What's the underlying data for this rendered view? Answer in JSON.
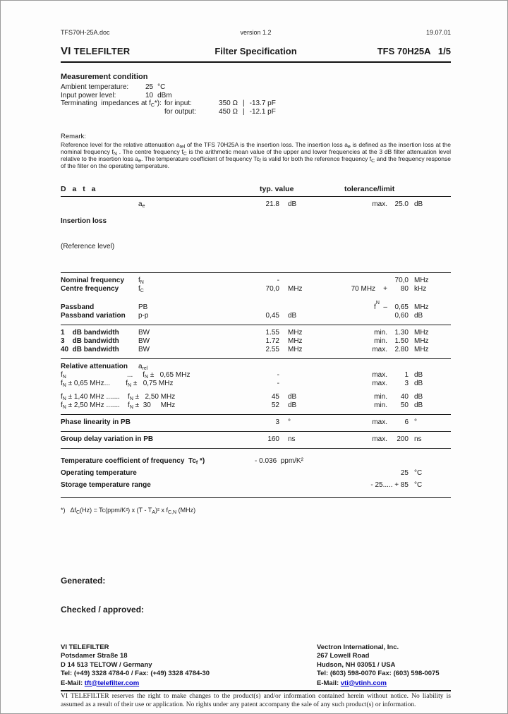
{
  "meta": {
    "filename": "TFS70H-25A.doc",
    "version": "version 1.2",
    "date": "19.07.01"
  },
  "header": {
    "logo_vi": "VI",
    "logo_name": "TELEFILTER",
    "title": "Filter Specification",
    "part": "TFS 70H25A",
    "page": "1/5"
  },
  "measurement": {
    "heading": "Measurement condition",
    "ambient_label": "Ambient temperature:",
    "ambient_value": "25",
    "ambient_unit": "°C",
    "power_label": "Input power level:",
    "power_value": "10",
    "power_unit": "dBm",
    "term_label": "Terminating  impedances at f_{C}*):",
    "input_label": "for input:",
    "input_z": "350 Ω",
    "input_sep": "|",
    "input_c": "-13.7 pF",
    "output_label": "for output:",
    "output_z": "450 Ω",
    "output_sep": "|",
    "output_c": "-12.1 pF"
  },
  "remark": {
    "heading": "Remark:",
    "text": "Reference level for the relative attenuation a_{rel} of the TFS 70H25A  is the insertion loss. The  insertion loss a_{e} is defined as the insertion loss at the nominal frequency f_{N} . The centre frequency f_{C} is the arithmetic mean value of the upper and lower frequencies at the 3 dB filter attenuation level relative to the insertion loss a_{e}. The temperature coefficient of frequency Tc_{f} is valid for both the reference frequency f_{C} and the frequency response of the filter on the operating temperature."
  },
  "table": {
    "h_data": "D a t a",
    "h_typ": "typ. value",
    "h_tol": "tolerance/limit",
    "rows": [
      {
        "param": "Insertion loss",
        "param2": "(Reference level)",
        "sym": "a_{e}",
        "tv": "21.8",
        "tu": "dB",
        "tp": "max.",
        "lv": "25.0",
        "lu": "dB"
      },
      {
        "param": "Nominal frequency",
        "sym": "f_{N}",
        "tv": "-",
        "lv": "70,0",
        "lu": "MHz"
      },
      {
        "param": "Centre frequency",
        "sym": "f_{C}",
        "tv": "70,0",
        "tu": "MHz",
        "tp": "70 MHz    +",
        "lv": "80",
        "lu": "kHz"
      },
      {
        "param": "Passband",
        "sym": "PB",
        "tp": "f_{N}  –",
        "lv": "0,65",
        "lu": "MHz"
      },
      {
        "param": "Passband variation",
        "sym": "p-p",
        "tv": "0,45",
        "tu": "dB",
        "lv": "0,60",
        "lu": "dB"
      },
      {
        "param": "1    dB bandwidth",
        "sym": "BW",
        "tv": "1.55",
        "tu": "MHz",
        "tp": "min.",
        "lv": "1.30",
        "lu": "MHz"
      },
      {
        "param": "3    dB bandwidth",
        "sym": "BW",
        "tv": "1.72",
        "tu": "MHz",
        "tp": "min.",
        "lv": "1.50",
        "lu": "MHz"
      },
      {
        "param": "40  dB bandwidth",
        "sym": "BW",
        "tv": "2.55",
        "tu": "MHz",
        "tp": "max.",
        "lv": "2.80",
        "lu": "MHz"
      },
      {
        "param": "Relative attenuation",
        "sym": "a_{rel}"
      },
      {
        "span": "f_{N}                               ...     f_{N} ±   0,65 MHz",
        "tv": "-",
        "tp": "max.",
        "lv": "1",
        "lu": "dB"
      },
      {
        "span": "f_{N} ± 0,65 MHz...        f_{N} ±   0,75 MHz",
        "tv": "-",
        "tp": "max.",
        "lv": "3",
        "lu": "dB"
      },
      {
        "span": "f_{N} ± 1,40 MHz .......    f_{N} ±   2,50 MHz",
        "tv": "45",
        "tu": "dB",
        "tp": "min.",
        "lv": "40",
        "lu": "dB"
      },
      {
        "span": "f_{N} ± 2,50 MHz .......    f_{N} ±  30     MHz",
        "tv": "52",
        "tu": "dB",
        "tp": "min.",
        "lv": "50",
        "lu": "dB"
      },
      {
        "span": "Phase linearity in PB",
        "tv": "3",
        "tu": "°",
        "tp": "max.",
        "lv": "6",
        "lu": "°"
      },
      {
        "span": "Group delay variation in PB",
        "tv": "160",
        "tu": "ns",
        "tp": "max.",
        "lv": "200",
        "lu": "ns"
      },
      {
        "span": "Temperature coefficient of frequency  Tc_{f} *)",
        "tvfull": "- 0.036  ppm/K²"
      },
      {
        "span": "Operating temperature",
        "lv": "25",
        "lu": "°C"
      },
      {
        "span": "Storage temperature range",
        "lv": "- 25..... + 85",
        "lu": "°C"
      }
    ],
    "footnote": "*)   Δf_{C}(Hz) = Tc(ppm/K²) x (T - T_{A})² x f_{C,N} (MHz)"
  },
  "signoff": {
    "generated": "Generated:",
    "approved": "Checked / approved:"
  },
  "footer": {
    "left": {
      "company": "VI TELEFILTER",
      "street": "Potsdamer Straße 18",
      "city": "D 14 513 TELTOW / Germany",
      "phone": "Tel: (+49) 3328 4784-0 / Fax: (+49) 3328 4784-30",
      "email_label": "E-Mail:",
      "email": "tft@telefilter.com"
    },
    "right": {
      "company": "Vectron International, Inc.",
      "street": "267 Lowell Road",
      "city": "Hudson, NH 03051 / USA",
      "phone": "Tel: (603) 598-0070 Fax: (603) 598-0075",
      "email_label": "E-Mail:",
      "email": "vti@vtinh.com"
    },
    "disclaimer": "VI TELEFILTER reserves the right to make changes to the product(s) and/or information contained herein without notice.  No liability is assumed as a result of their use or application.  No rights under any patent accompany the sale of any such product(s) or information."
  }
}
